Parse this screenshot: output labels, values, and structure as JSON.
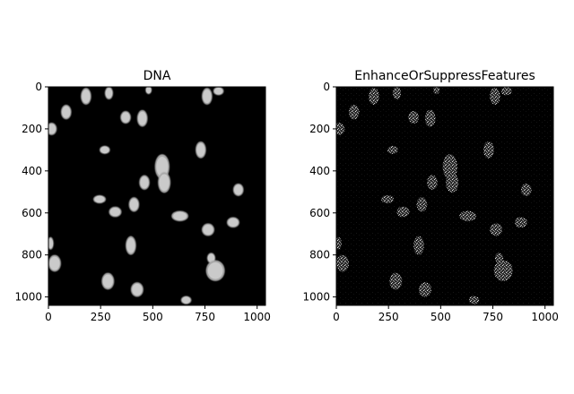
{
  "figure": {
    "background_color": "#ffffff",
    "panels": [
      {
        "title": "DNA",
        "image_kind": "raw",
        "x_ticks": [
          "0",
          "250",
          "500",
          "750",
          "1000"
        ],
        "y_ticks": [
          "0",
          "200",
          "400",
          "600",
          "800",
          "1000"
        ]
      },
      {
        "title": "EnhanceOrSuppressFeatures",
        "image_kind": "enhanced",
        "x_ticks": [
          "0",
          "250",
          "500",
          "750",
          "1000"
        ],
        "y_ticks": [
          "0",
          "200",
          "400",
          "600",
          "800",
          "1000"
        ]
      }
    ],
    "image_extent": {
      "x": [
        0,
        1040
      ],
      "y": [
        1040,
        0
      ]
    },
    "nuclei": [
      {
        "x": 180,
        "y": 45,
        "rx": 25,
        "ry": 40
      },
      {
        "x": 290,
        "y": 30,
        "rx": 20,
        "ry": 30
      },
      {
        "x": 480,
        "y": 15,
        "rx": 15,
        "ry": 20
      },
      {
        "x": 85,
        "y": 120,
        "rx": 25,
        "ry": 35
      },
      {
        "x": 370,
        "y": 145,
        "rx": 25,
        "ry": 30
      },
      {
        "x": 450,
        "y": 150,
        "rx": 25,
        "ry": 40
      },
      {
        "x": 15,
        "y": 200,
        "rx": 25,
        "ry": 30
      },
      {
        "x": 760,
        "y": 45,
        "rx": 25,
        "ry": 40
      },
      {
        "x": 815,
        "y": 20,
        "rx": 25,
        "ry": 20
      },
      {
        "x": 270,
        "y": 300,
        "rx": 25,
        "ry": 20
      },
      {
        "x": 730,
        "y": 300,
        "rx": 25,
        "ry": 40
      },
      {
        "x": 545,
        "y": 380,
        "rx": 35,
        "ry": 60
      },
      {
        "x": 555,
        "y": 455,
        "rx": 30,
        "ry": 50
      },
      {
        "x": 460,
        "y": 455,
        "rx": 25,
        "ry": 35
      },
      {
        "x": 910,
        "y": 490,
        "rx": 25,
        "ry": 30
      },
      {
        "x": 245,
        "y": 535,
        "rx": 30,
        "ry": 20
      },
      {
        "x": 410,
        "y": 560,
        "rx": 25,
        "ry": 35
      },
      {
        "x": 320,
        "y": 595,
        "rx": 30,
        "ry": 25
      },
      {
        "x": 630,
        "y": 615,
        "rx": 40,
        "ry": 25
      },
      {
        "x": 885,
        "y": 645,
        "rx": 30,
        "ry": 25
      },
      {
        "x": 765,
        "y": 680,
        "rx": 30,
        "ry": 30
      },
      {
        "x": 395,
        "y": 755,
        "rx": 25,
        "ry": 45
      },
      {
        "x": 10,
        "y": 745,
        "rx": 15,
        "ry": 30
      },
      {
        "x": 780,
        "y": 815,
        "rx": 20,
        "ry": 25
      },
      {
        "x": 800,
        "y": 875,
        "rx": 45,
        "ry": 50
      },
      {
        "x": 30,
        "y": 840,
        "rx": 30,
        "ry": 40
      },
      {
        "x": 285,
        "y": 925,
        "rx": 30,
        "ry": 40
      },
      {
        "x": 425,
        "y": 965,
        "rx": 30,
        "ry": 35
      },
      {
        "x": 660,
        "y": 1015,
        "rx": 25,
        "ry": 20
      }
    ]
  }
}
